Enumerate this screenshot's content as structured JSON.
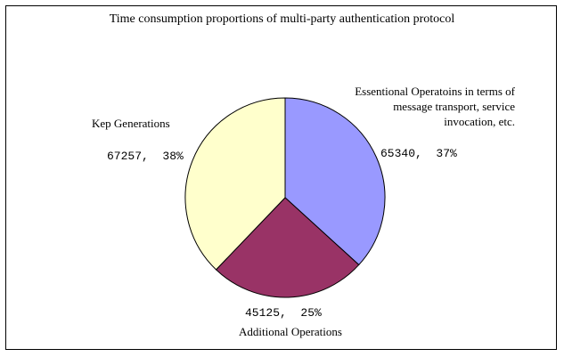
{
  "chart_data": {
    "type": "pie",
    "title": "Time consumption proportions of multi-party authentication protocol",
    "slices": [
      {
        "label": "Essentional Operatoins in terms of message transport, service invocation, etc.",
        "value": 65340,
        "percent": "37%",
        "value_text": "65340,  37%",
        "color": "#9999ff"
      },
      {
        "label": "Additional Operations",
        "value": 45125,
        "percent": "25%",
        "value_text": "45125,  25%",
        "color": "#993366"
      },
      {
        "label": "Kep Generations",
        "value": 67257,
        "percent": "38%",
        "value_text": "67257,  38%",
        "color": "#ffffcc"
      }
    ],
    "start_angle_deg": 0,
    "direction": "clockwise",
    "legend": "none"
  }
}
